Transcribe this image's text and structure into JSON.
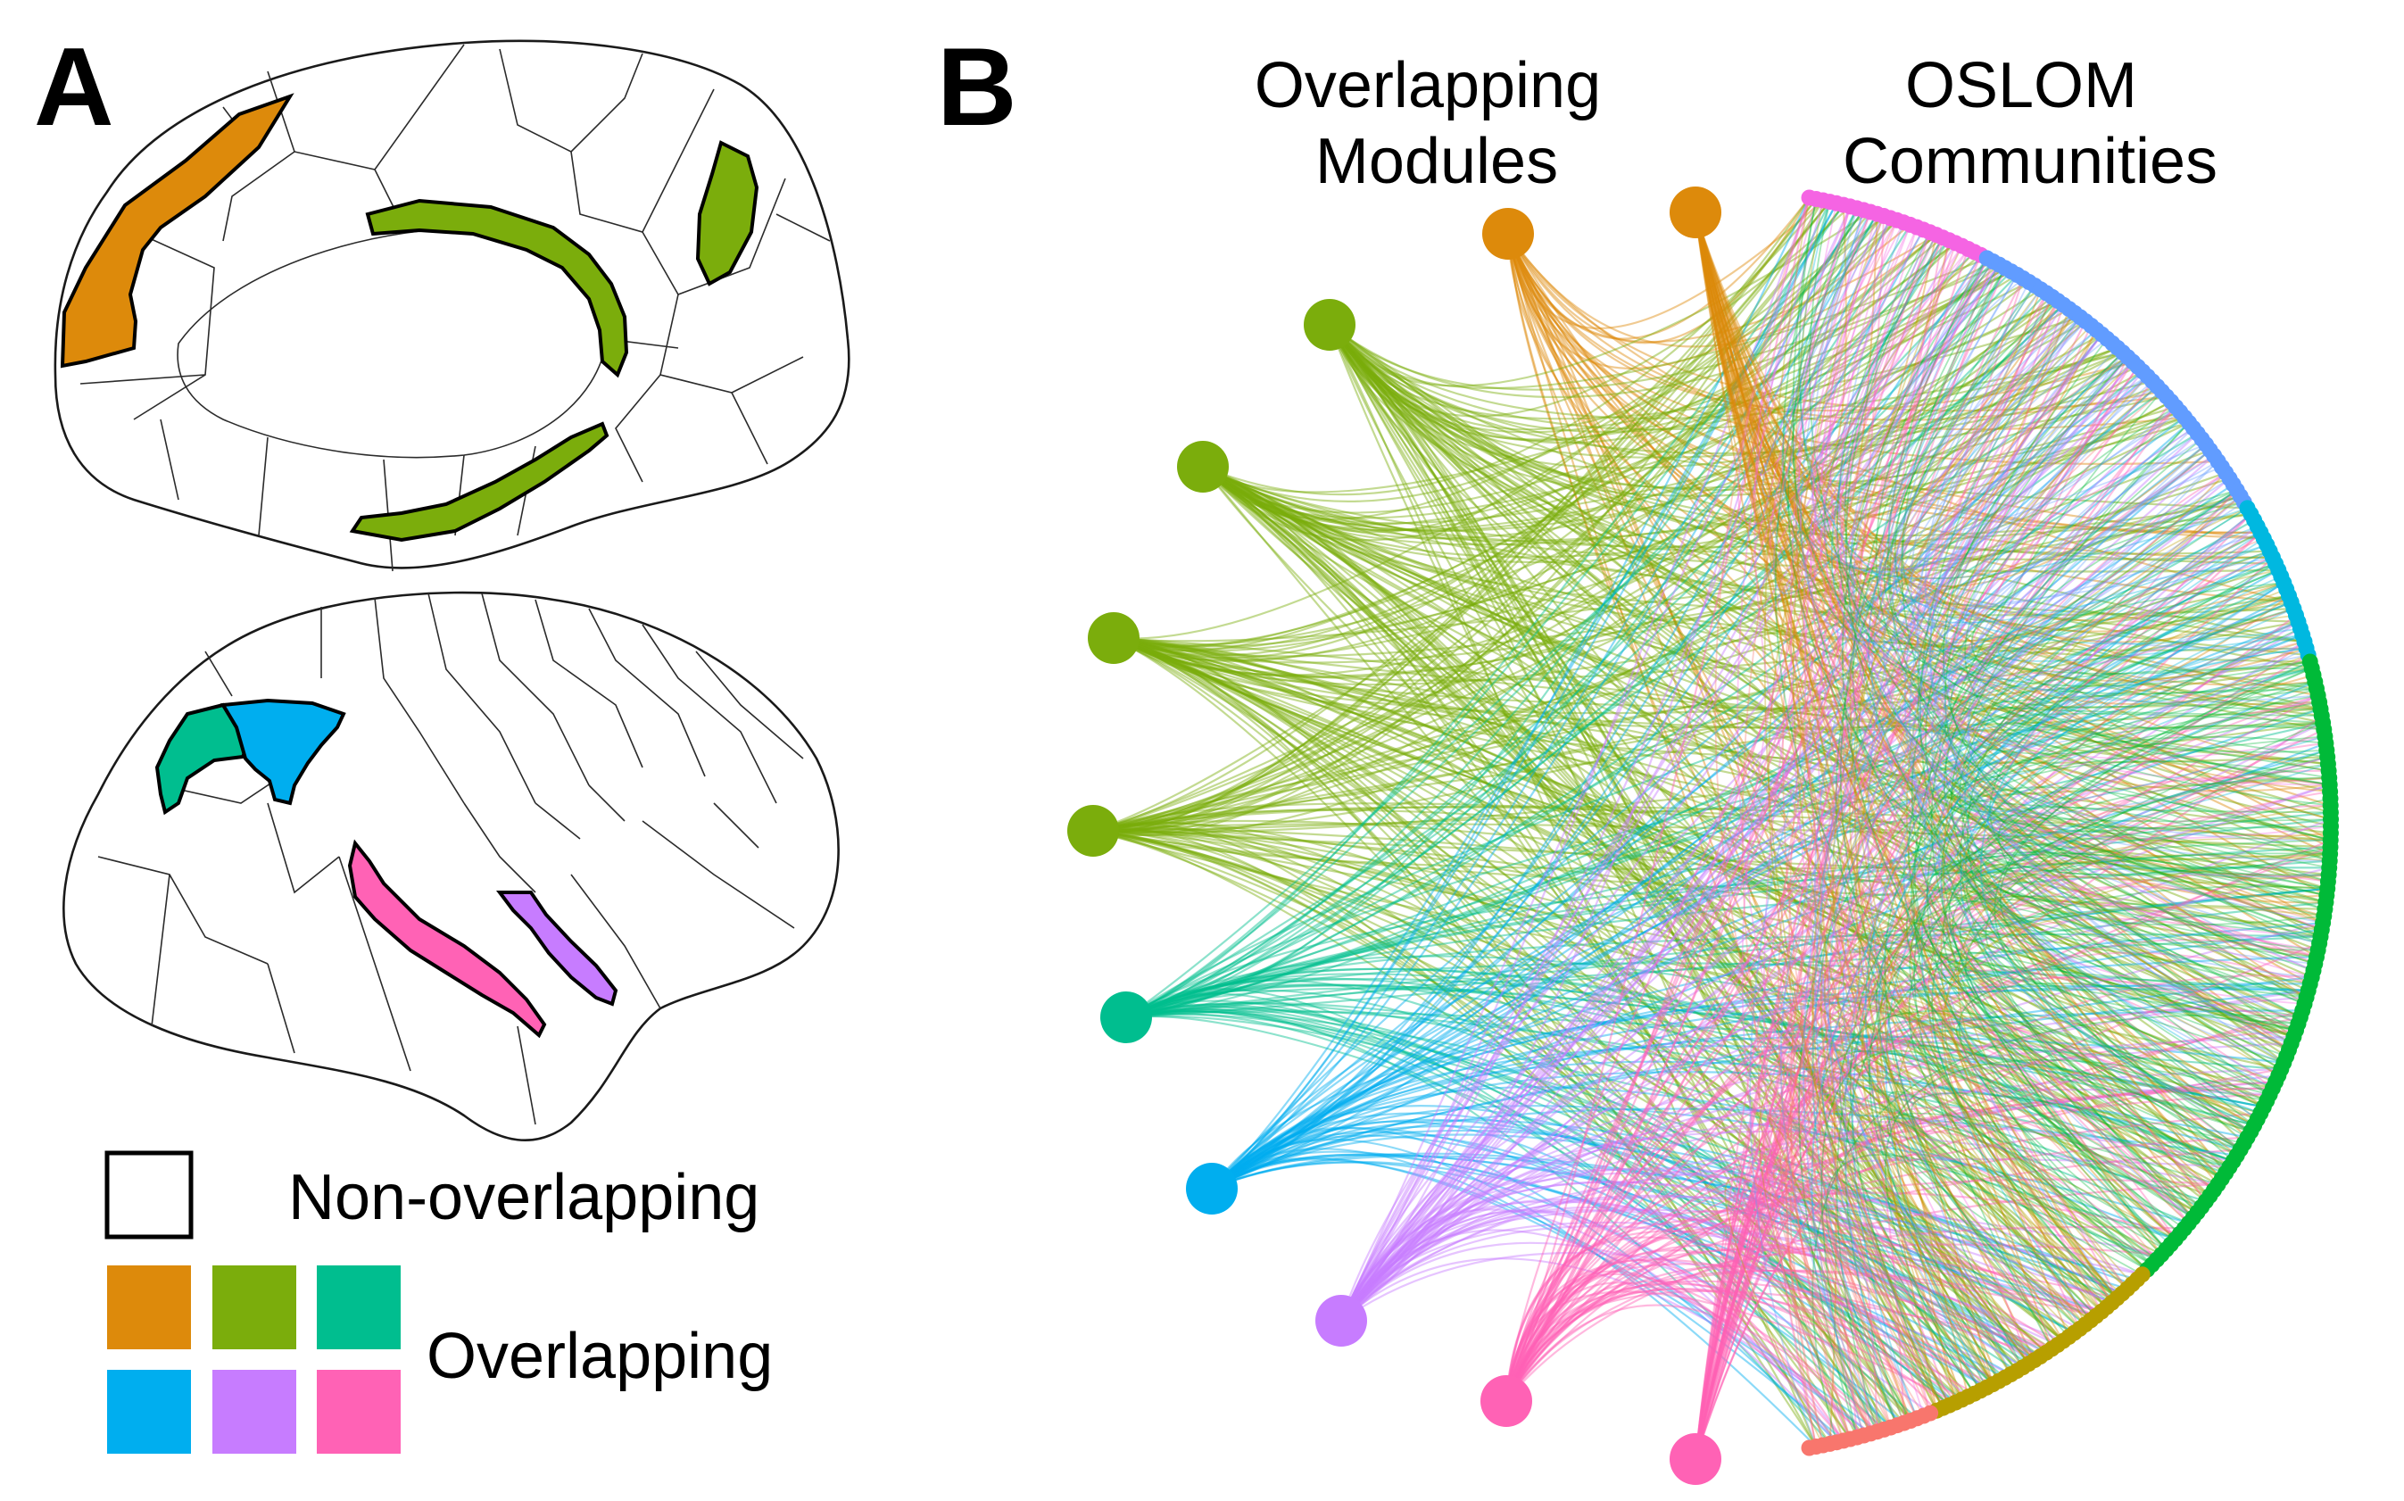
{
  "panels": {
    "a": {
      "letter": "A"
    },
    "b": {
      "letter": "B"
    }
  },
  "diagram": {
    "left_heading": [
      "Overlapping",
      "Modules"
    ],
    "right_heading": [
      "OSLOM",
      "Communities"
    ]
  },
  "legend": {
    "non_overlapping_label": "Non-overlapping",
    "overlapping_label": "Overlapping"
  },
  "colors": {
    "orange": "#DD8A0B",
    "olive_green": "#7BAD0C",
    "teal": "#00BE8F",
    "sky_blue": "#00AEEF",
    "lavender": "#C77CFF",
    "pink": "#FF62B5",
    "community_arc": [
      "#F564E3",
      "#619CFF",
      "#00B8E0",
      "#00BA38",
      "#B79F00",
      "#F8766D"
    ]
  },
  "modules": [
    {
      "id": "orange",
      "color": "#DD8A0B"
    },
    {
      "id": "green-1",
      "color": "#7BAD0C"
    },
    {
      "id": "green-2",
      "color": "#7BAD0C"
    },
    {
      "id": "green-3",
      "color": "#7BAD0C"
    },
    {
      "id": "green-4",
      "color": "#7BAD0C"
    },
    {
      "id": "teal",
      "color": "#00BE8F"
    },
    {
      "id": "blue",
      "color": "#00AEEF"
    },
    {
      "id": "purple",
      "color": "#C77CFF"
    },
    {
      "id": "pink",
      "color": "#FF62B5"
    }
  ]
}
